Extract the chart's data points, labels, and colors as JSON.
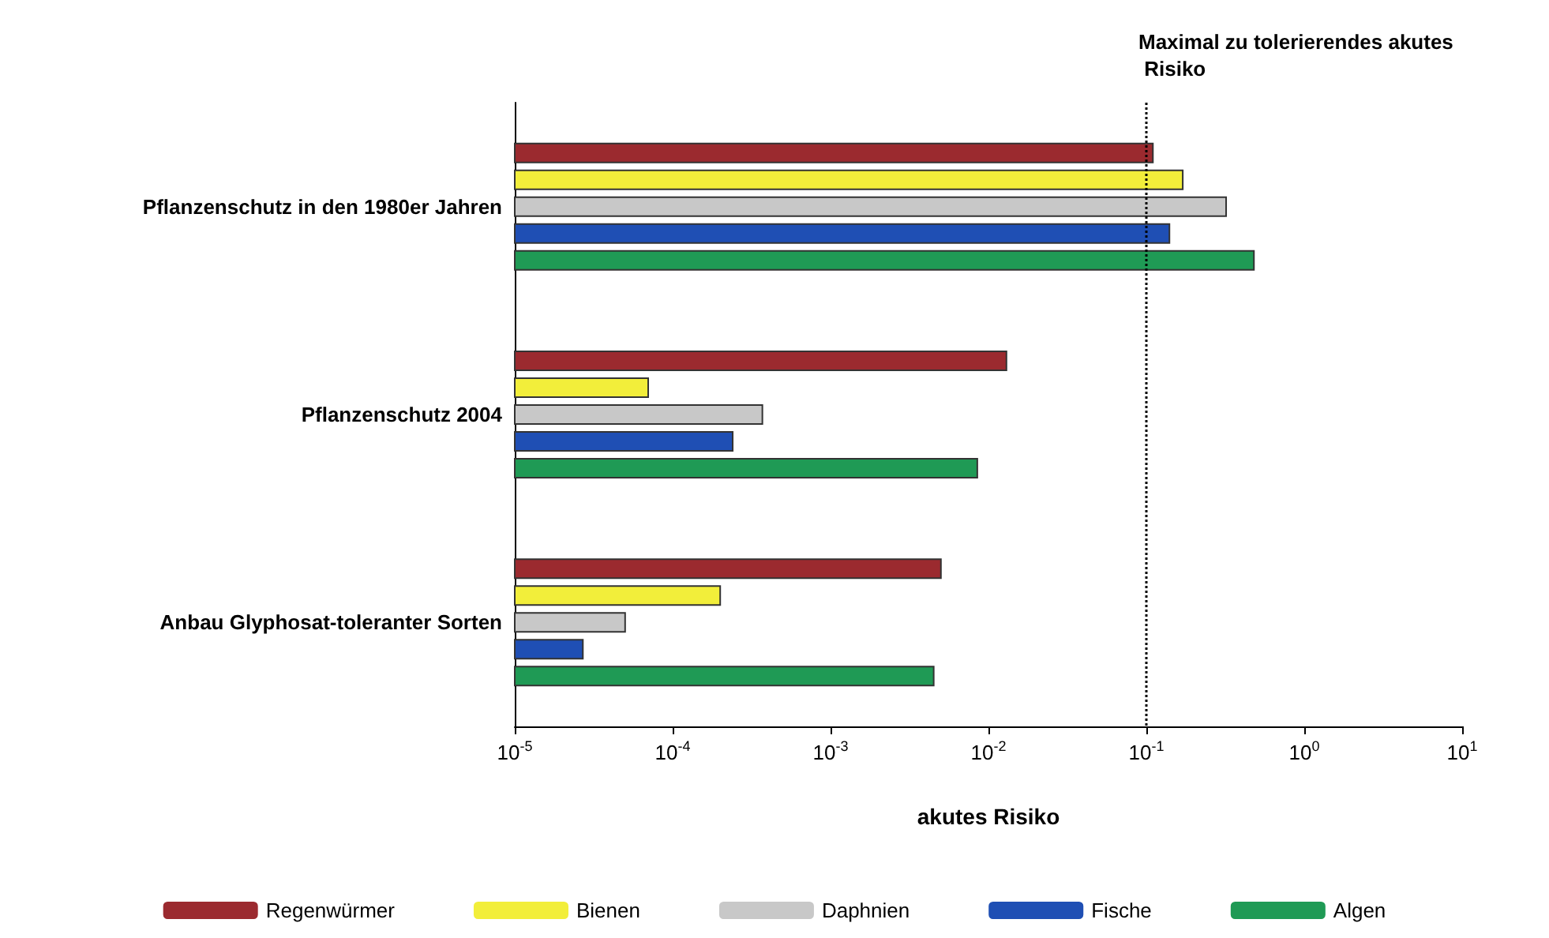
{
  "chart_data": {
    "type": "bar",
    "orientation": "horizontal",
    "log": "x",
    "xlabel": "akutes Risiko",
    "categories": [
      "Pflanzenschutz in den 1980er Jahren",
      "Pflanzenschutz 2004",
      "Anbau Glyphosat-toleranter Sorten"
    ],
    "series": [
      {
        "name": "Regenwürmer",
        "color": "#9b2a2f",
        "values": [
          0.11,
          0.013,
          0.005
        ]
      },
      {
        "name": "Bienen",
        "color": "#f2ee3a",
        "values": [
          0.17,
          7e-05,
          0.0002
        ]
      },
      {
        "name": "Daphnien",
        "color": "#c8c8c8",
        "values": [
          0.32,
          0.00037,
          5e-05
        ]
      },
      {
        "name": "Fische",
        "color": "#1f4fb4",
        "values": [
          0.14,
          0.00024,
          2.7e-05
        ]
      },
      {
        "name": "Algen",
        "color": "#1f9a55",
        "values": [
          0.48,
          0.0085,
          0.0045
        ]
      }
    ],
    "xlim": [
      1e-05,
      10
    ],
    "xticks": [
      {
        "value": 1e-05,
        "label": "10$^{-5}$"
      },
      {
        "value": 0.0001,
        "label": "10$^{-4}$"
      },
      {
        "value": 0.001,
        "label": "10$^{-3}$"
      },
      {
        "value": 0.01,
        "label": "10$^{-2}$"
      },
      {
        "value": 0.1,
        "label": "10$^{-1}$"
      },
      {
        "value": 1,
        "label": "10$^{0}$"
      },
      {
        "value": 10,
        "label": "10$^{1}$"
      }
    ],
    "ref_lines": [
      {
        "axis": "x",
        "value": 0.1,
        "label": "Maximal zu tolerierendes akutes Risiko",
        "line_style": "dotted",
        "color": "#000000"
      }
    ],
    "grid": false,
    "legend": "bottom"
  }
}
